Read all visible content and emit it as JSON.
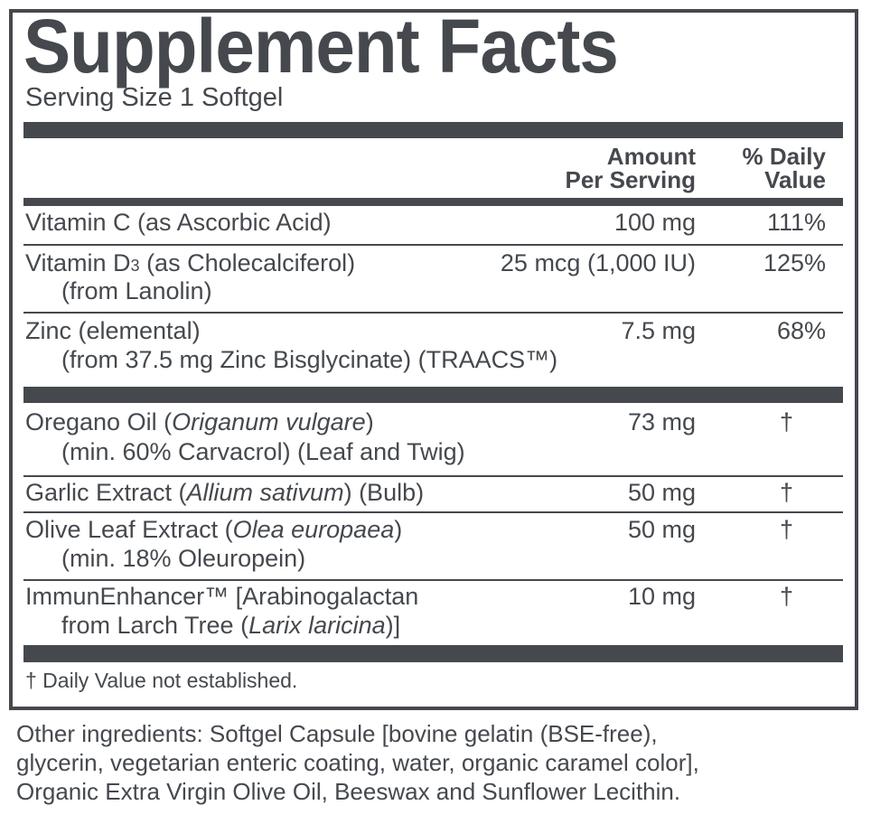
{
  "title": "Supplement Facts",
  "serving_size": "Serving Size 1 Softgel",
  "header": {
    "amount_line1": "Amount",
    "amount_line2": "Per Serving",
    "dv_line1": "% Daily",
    "dv_line2": "Value"
  },
  "nutrients": [
    {
      "name": "Vitamin C (as Ascorbic Acid)",
      "amount": "100 mg",
      "dv": "111%"
    },
    {
      "name_a": "Vitamin D",
      "name_sub": "3",
      "name_b": " (as Cholecalciferol)",
      "line2": "(from Lanolin)",
      "amount": "25 mcg (1,000 IU)",
      "dv": "125%"
    },
    {
      "name": "Zinc (elemental)",
      "line2": "(from 37.5 mg Zinc Bisglycinate) (TRAACS™)",
      "amount": "7.5 mg",
      "dv": "68%"
    }
  ],
  "others": [
    {
      "name_a": "Oregano Oil (",
      "name_i": "Origanum vulgare",
      "name_b": ")",
      "line2": "(min. 60% Carvacrol) (Leaf and Twig)",
      "amount": "73 mg",
      "dv": "†"
    },
    {
      "name_a": "Garlic Extract (",
      "name_i": "Allium sativum",
      "name_b": ") (Bulb)",
      "amount": "50 mg",
      "dv": "†"
    },
    {
      "name_a": "Olive Leaf Extract (",
      "name_i": "Olea europaea",
      "name_b": ")",
      "line2": "(min. 18% Oleuropein)",
      "amount": "50 mg",
      "dv": "†"
    },
    {
      "name": "ImmunEnhancer™ [Arabinogalactan",
      "line2_a": "from Larch Tree (",
      "line2_i": "Larix laricina",
      "line2_b": ")]",
      "amount": "10 mg",
      "dv": "†"
    }
  ],
  "footnote": "† Daily Value not established.",
  "other_ingredients": [
    "Other ingredients: Softgel Capsule [bovine gelatin (BSE-free),",
    "glycerin, vegetarian enteric coating, water, organic caramel color],",
    "Organic Extra Virgin Olive Oil, Beeswax and Sunflower Lecithin."
  ],
  "colors": {
    "ink": "#45494e"
  }
}
